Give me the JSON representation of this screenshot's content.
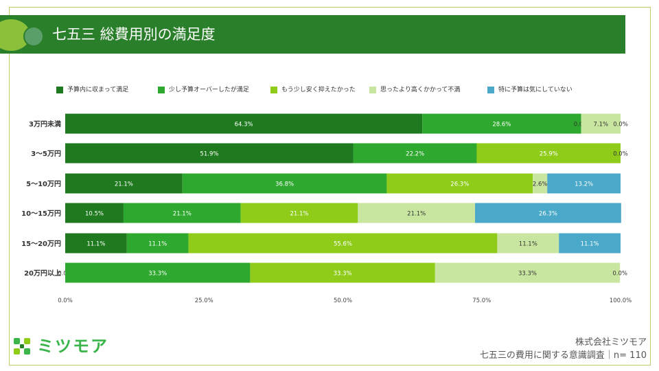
{
  "header": {
    "title": "七五三 総費用別の満足度"
  },
  "footer": {
    "logo_text": "ミツモア",
    "company": "株式会社ミツモア",
    "survey": "七五三の費用に関する意識調査｜n= 110"
  },
  "colors": {
    "header_bg": "#2a7f2a",
    "frame": "#b8d06a",
    "logo": "#39b54a"
  },
  "chart_data": {
    "type": "bar",
    "orientation": "horizontal",
    "stacked": true,
    "normalized": true,
    "categories": [
      "3万円未満",
      "3〜5万円",
      "5〜10万円",
      "10〜15万円",
      "15〜20万円",
      "20万円以上"
    ],
    "series": [
      {
        "name": "予算内に収まって満足",
        "color": "#1f7a1f",
        "values": [
          64.3,
          51.9,
          21.1,
          10.5,
          11.1,
          0.0
        ]
      },
      {
        "name": "少し予算オーバーしたが満足",
        "color": "#2ea82e",
        "values": [
          28.6,
          22.2,
          36.8,
          21.1,
          11.1,
          33.3
        ]
      },
      {
        "name": "もう少し安く抑えたかった",
        "color": "#8fcc1a",
        "values": [
          0.0,
          25.9,
          26.3,
          21.1,
          55.6,
          33.3
        ]
      },
      {
        "name": "思ったより高くかかって不満",
        "color": "#c9e6a0",
        "values": [
          7.1,
          0.0,
          2.6,
          21.1,
          11.1,
          33.3
        ]
      },
      {
        "name": "特に予算は気にしていない",
        "color": "#4aa8c8",
        "values": [
          0.0,
          0.0,
          13.2,
          26.3,
          11.1,
          0.0
        ]
      }
    ],
    "value_labels": [
      [
        "64.3%",
        "28.6%",
        "0.0%",
        "7.1%",
        "0.0%"
      ],
      [
        "51.9%",
        "22.2%",
        "25.9%",
        "",
        "0.0%"
      ],
      [
        "21.1%",
        "36.8%",
        "26.3%",
        "2.6%",
        "13.2%"
      ],
      [
        "10.5%",
        "21.1%",
        "21.1%",
        "21.1%",
        "26.3%"
      ],
      [
        "11.1%",
        "11.1%",
        "55.6%",
        "11.1%",
        "11.1%"
      ],
      [
        "0.0%",
        "33.3%",
        "33.3%",
        "33.3%",
        "0.0%"
      ]
    ],
    "xlim": [
      0,
      100
    ],
    "xticks": [
      0,
      25,
      50,
      75,
      100
    ],
    "xtick_labels": [
      "0.0%",
      "25.0%",
      "50.0%",
      "75.0%",
      "100.0%"
    ],
    "legend_position": "top",
    "grid": false
  }
}
